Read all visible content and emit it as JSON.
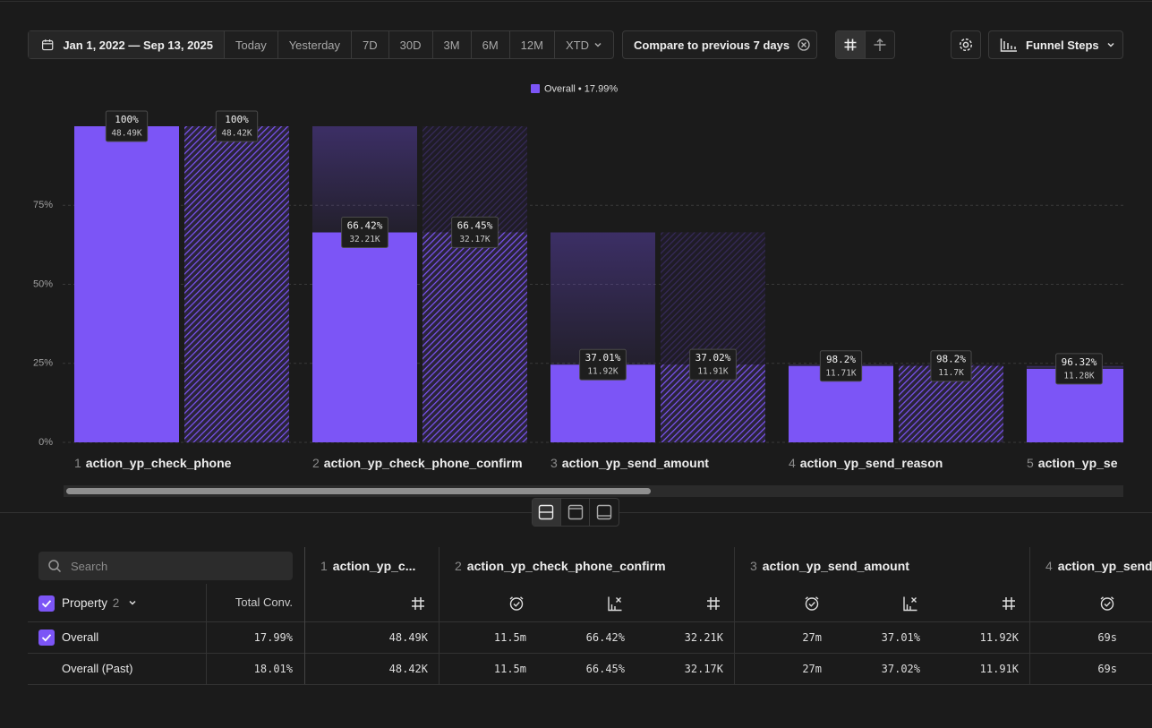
{
  "toolbar": {
    "date_range": "Jan 1, 2022 — Sep 13, 2025",
    "presets": [
      "Today",
      "Yesterday",
      "7D",
      "30D",
      "3M",
      "6M",
      "12M",
      "XTD"
    ],
    "compare": "Compare to previous 7 days",
    "view_menu": "Funnel Steps"
  },
  "chart_data": {
    "type": "bar",
    "legend": {
      "label": "Overall • 17.99%",
      "color": "#7c55f6"
    },
    "step_numbers": [
      "1",
      "2",
      "3",
      "4",
      "5"
    ],
    "categories": [
      "action_yp_check_phone",
      "action_yp_check_phone_confirm",
      "action_yp_send_amount",
      "action_yp_send_reason",
      "action_yp_se"
    ],
    "ylim": [
      0,
      100
    ],
    "yticks": [
      {
        "value": 0,
        "label": "0%"
      },
      {
        "value": 25,
        "label": "25%"
      },
      {
        "value": 50,
        "label": "50%"
      },
      {
        "value": 75,
        "label": "75%"
      }
    ],
    "grid": true,
    "series": [
      {
        "color": "#7c55f6",
        "pattern": "solid",
        "values": [
          100,
          66.42,
          24.58,
          24.15,
          23.26
        ],
        "rate_labels": [
          "100%",
          "66.42%",
          "37.01%",
          "98.2%",
          "96.32%"
        ],
        "count_labels": [
          "48.49K",
          "32.21K",
          "11.92K",
          "11.71K",
          "11.28K"
        ]
      },
      {
        "color": "#7c55f6",
        "pattern": "hatch",
        "values": [
          100,
          66.45,
          24.6,
          24.16,
          null
        ],
        "rate_labels": [
          "100%",
          "66.45%",
          "37.02%",
          "98.2%",
          null
        ],
        "count_labels": [
          "48.42K",
          "32.17K",
          "11.91K",
          "11.7K",
          null
        ]
      }
    ]
  },
  "table": {
    "search_placeholder": "Search",
    "property_label": "Property",
    "property_count": "2",
    "total_label": "Total Conv.",
    "groups": [
      {
        "step": "1",
        "name": "action_yp_c..."
      },
      {
        "step": "2",
        "name": "action_yp_check_phone_confirm"
      },
      {
        "step": "3",
        "name": "action_yp_send_amount"
      },
      {
        "step": "4",
        "name": "action_yp_send_reason"
      }
    ],
    "rows": [
      [
        "Overall",
        "17.99%",
        "48.49K",
        "11.5m",
        "66.42%",
        "32.21K",
        "27m",
        "37.01%",
        "11.92K",
        "69s"
      ],
      [
        "Overall (Past)",
        "18.01%",
        "48.42K",
        "11.5m",
        "66.45%",
        "32.17K",
        "27m",
        "37.02%",
        "11.91K",
        "69s"
      ]
    ]
  }
}
